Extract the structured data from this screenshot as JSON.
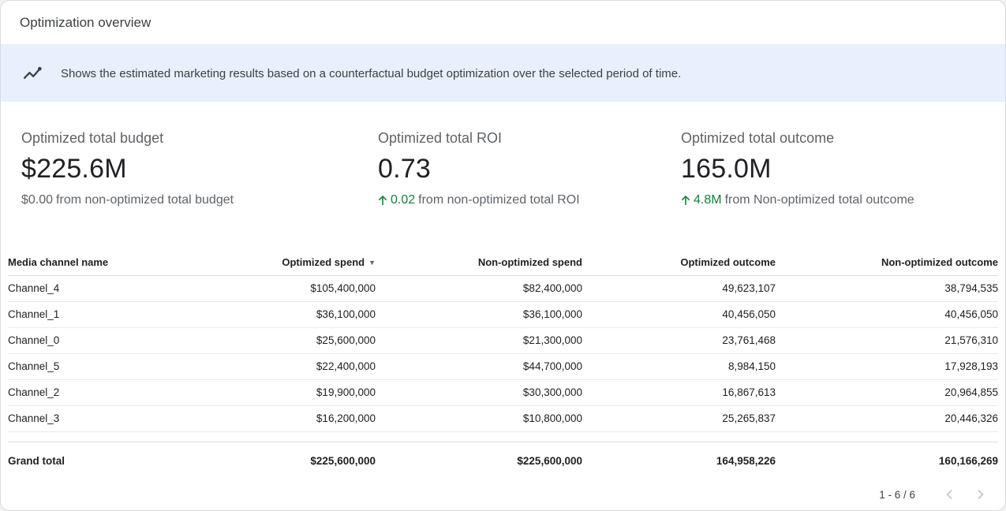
{
  "header": {
    "title": "Optimization overview"
  },
  "banner": {
    "icon": "insights-icon",
    "text": "Shows the estimated marketing results based on a counterfactual budget optimization over the selected period of time."
  },
  "kpis": [
    {
      "label": "Optimized total budget",
      "value": "$225.6M",
      "delta_value": "$0.00",
      "delta_suffix": "from non-optimized total budget",
      "delta_positive": false
    },
    {
      "label": "Optimized total ROI",
      "value": "0.73",
      "delta_value": "0.02",
      "delta_suffix": "from non-optimized total ROI",
      "delta_positive": true
    },
    {
      "label": "Optimized total outcome",
      "value": "165.0M",
      "delta_value": "4.8M",
      "delta_suffix": "from Non-optimized total outcome",
      "delta_positive": true
    }
  ],
  "table": {
    "sort_icon": "▼",
    "columns": [
      {
        "label": "Media channel name",
        "align": "left",
        "sorted": false
      },
      {
        "label": "Optimized spend",
        "align": "right",
        "sorted": true
      },
      {
        "label": "Non-optimized spend",
        "align": "right",
        "sorted": false
      },
      {
        "label": "Optimized outcome",
        "align": "right",
        "sorted": false
      },
      {
        "label": "Non-optimized outcome",
        "align": "right",
        "sorted": false
      }
    ],
    "rows": [
      [
        "Channel_4",
        "$105,400,000",
        "$82,400,000",
        "49,623,107",
        "38,794,535"
      ],
      [
        "Channel_1",
        "$36,100,000",
        "$36,100,000",
        "40,456,050",
        "40,456,050"
      ],
      [
        "Channel_0",
        "$25,600,000",
        "$21,300,000",
        "23,761,468",
        "21,576,310"
      ],
      [
        "Channel_5",
        "$22,400,000",
        "$44,700,000",
        "8,984,150",
        "17,928,193"
      ],
      [
        "Channel_2",
        "$19,900,000",
        "$30,300,000",
        "16,867,613",
        "20,964,855"
      ],
      [
        "Channel_3",
        "$16,200,000",
        "$10,800,000",
        "25,265,837",
        "20,446,326"
      ]
    ],
    "grand_total": [
      "Grand total",
      "$225,600,000",
      "$225,600,000",
      "164,958,226",
      "160,166,269"
    ]
  },
  "pagination": {
    "range_label": "1 - 6 / 6"
  },
  "colors": {
    "accent_green": "#188038",
    "banner_bg": "#e8f0fe",
    "border": "#dadce0"
  }
}
